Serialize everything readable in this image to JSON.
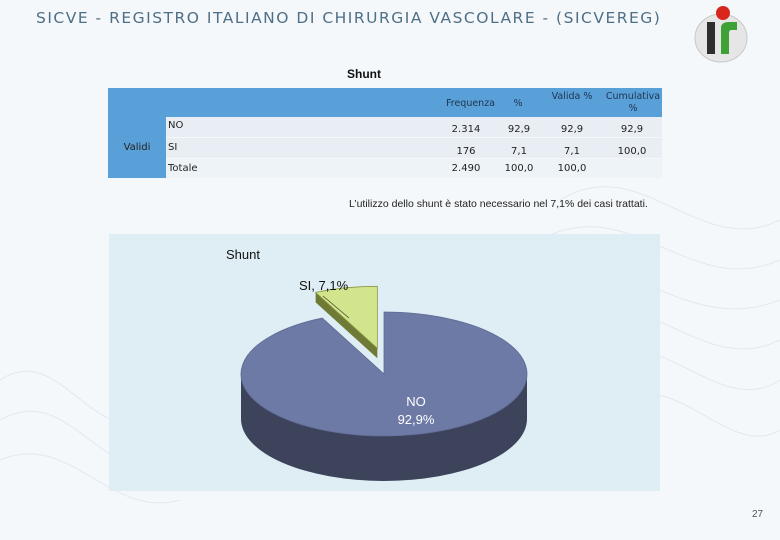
{
  "header": {
    "title": "SICVE - REGISTRO ITALIANO DI CHIRURGIA VASCOLARE -  (SICVEREG)"
  },
  "table": {
    "title": "Shunt",
    "columns": [
      "Frequenza",
      "%",
      "Valida %",
      "Cumulativa %"
    ],
    "row_group": "Validi",
    "rows": [
      {
        "label": "NO",
        "frequenza": "2.314",
        "percent": "92,9",
        "valida": "92,9",
        "cumulativa": "92,9"
      },
      {
        "label": "SI",
        "frequenza": "176",
        "percent": "7,1",
        "valida": "7,1",
        "cumulativa": "100,0"
      }
    ],
    "total": {
      "label": "Totale",
      "frequenza": "2.490",
      "percent": "100,0",
      "valida": "100,0"
    }
  },
  "caption": "L’utilizzo dello shunt è stato necessario nel 7,1% dei casi trattati.",
  "chart_data": {
    "type": "pie",
    "title": "Shunt",
    "categories": [
      "NO",
      "SI"
    ],
    "values": [
      92.9,
      7.1
    ],
    "labels": [
      {
        "name": "NO",
        "value": "92,9%"
      },
      {
        "name": "SI",
        "value": "SI, 7,1%"
      }
    ],
    "colors": [
      "#6e7aa6",
      "#d2e58c"
    ],
    "legend": "none"
  },
  "footer": {
    "page_number": "27"
  }
}
